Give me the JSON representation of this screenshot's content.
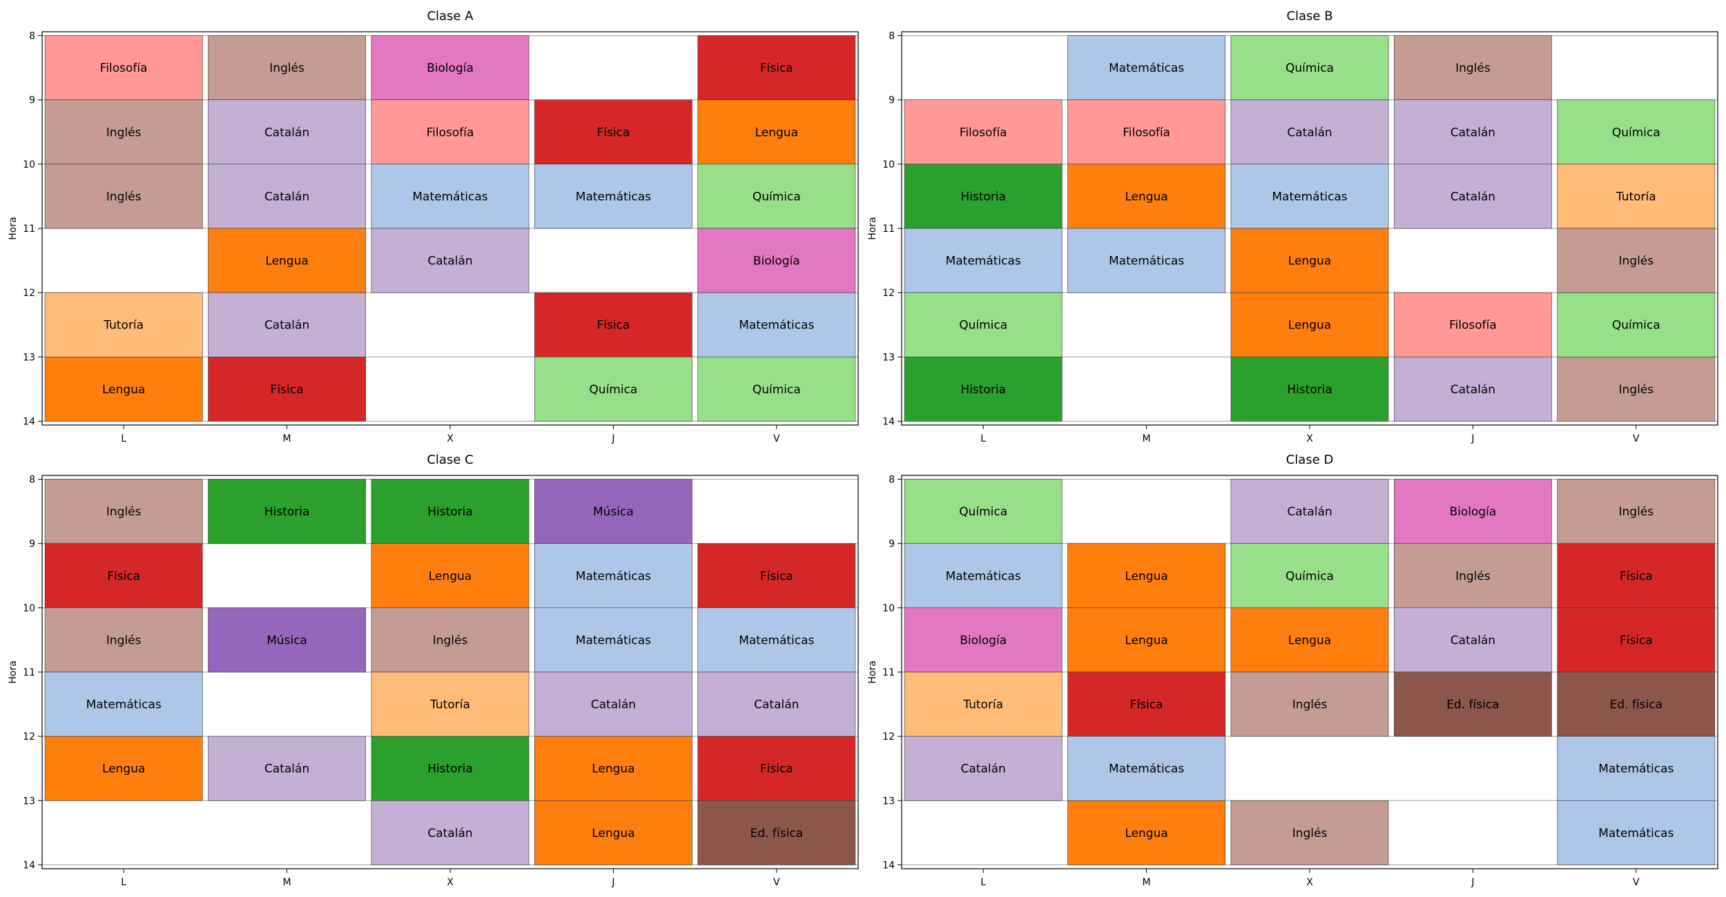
{
  "chart_data": [
    {
      "type": "heatmap",
      "title": "Clase A",
      "ylabel": "Hora",
      "days": [
        "L",
        "M",
        "X",
        "J",
        "V"
      ],
      "hours": [
        "8",
        "9",
        "10",
        "11",
        "12",
        "13",
        "14"
      ],
      "ylim": [
        8,
        14
      ],
      "schedule": [
        [
          "Filosofía",
          "Inglés",
          "Biología",
          "",
          "Física"
        ],
        [
          "Inglés",
          "Catalán",
          "Filosofía",
          "Física",
          "Lengua"
        ],
        [
          "Inglés",
          "Catalán",
          "Matemáticas",
          "Matemáticas",
          "Química"
        ],
        [
          "",
          "Lengua",
          "Catalán",
          "",
          "Biología"
        ],
        [
          "Tutoría",
          "Catalán",
          "",
          "Física",
          "Matemáticas"
        ],
        [
          "Lengua",
          "Física",
          "",
          "Química",
          "Química"
        ]
      ]
    },
    {
      "type": "heatmap",
      "title": "Clase B",
      "ylabel": "Hora",
      "days": [
        "L",
        "M",
        "X",
        "J",
        "V"
      ],
      "hours": [
        "8",
        "9",
        "10",
        "11",
        "12",
        "13",
        "14"
      ],
      "ylim": [
        8,
        14
      ],
      "schedule": [
        [
          "",
          "Matemáticas",
          "Química",
          "Inglés",
          ""
        ],
        [
          "Filosofía",
          "Filosofía",
          "Catalán",
          "Catalán",
          "Química"
        ],
        [
          "Historia",
          "Lengua",
          "Matemáticas",
          "Catalán",
          "Tutoría"
        ],
        [
          "Matemáticas",
          "Matemáticas",
          "Lengua",
          "",
          "Inglés"
        ],
        [
          "Química",
          "",
          "Lengua",
          "Filosofía",
          "Química"
        ],
        [
          "Historia",
          "",
          "Historia",
          "Catalán",
          "Inglés"
        ]
      ]
    },
    {
      "type": "heatmap",
      "title": "Clase C",
      "ylabel": "Hora",
      "days": [
        "L",
        "M",
        "X",
        "J",
        "V"
      ],
      "hours": [
        "8",
        "9",
        "10",
        "11",
        "12",
        "13",
        "14"
      ],
      "ylim": [
        8,
        14
      ],
      "schedule": [
        [
          "Inglés",
          "Historia",
          "Historia",
          "Música",
          ""
        ],
        [
          "Física",
          "",
          "Lengua",
          "Matemáticas",
          "Física"
        ],
        [
          "Inglés",
          "Música",
          "Inglés",
          "Matemáticas",
          "Matemáticas"
        ],
        [
          "Matemáticas",
          "",
          "Tutoría",
          "Catalán",
          "Catalán"
        ],
        [
          "Lengua",
          "Catalán",
          "Historia",
          "Lengua",
          "Física"
        ],
        [
          "",
          "",
          "Catalán",
          "Lengua",
          "Ed. física"
        ]
      ]
    },
    {
      "type": "heatmap",
      "title": "Clase D",
      "ylabel": "Hora",
      "days": [
        "L",
        "M",
        "X",
        "J",
        "V"
      ],
      "hours": [
        "8",
        "9",
        "10",
        "11",
        "12",
        "13",
        "14"
      ],
      "ylim": [
        8,
        14
      ],
      "schedule": [
        [
          "Química",
          "",
          "Catalán",
          "Biología",
          "Inglés"
        ],
        [
          "Matemáticas",
          "Lengua",
          "Química",
          "Inglés",
          "Física"
        ],
        [
          "Biología",
          "Lengua",
          "Lengua",
          "Catalán",
          "Física"
        ],
        [
          "Tutoría",
          "Física",
          "Inglés",
          "Ed. física",
          "Ed. física"
        ],
        [
          "Catalán",
          "Matemáticas",
          "",
          "",
          "Matemáticas"
        ],
        [
          "",
          "Lengua",
          "Inglés",
          "",
          "Matemáticas"
        ]
      ]
    }
  ],
  "colors": {
    "Filosofía": "#ff9896",
    "Inglés": "#c49c94",
    "Biología": "#e377c2",
    "Física": "#d62728",
    "Catalán": "#c5b0d5",
    "Lengua": "#ff7f0e",
    "Matemáticas": "#aec7e8",
    "Química": "#98df8a",
    "Tutoría": "#ffbb78",
    "Historia": "#2ca02c",
    "Música": "#9467bd",
    "Ed. física": "#8c564b"
  }
}
